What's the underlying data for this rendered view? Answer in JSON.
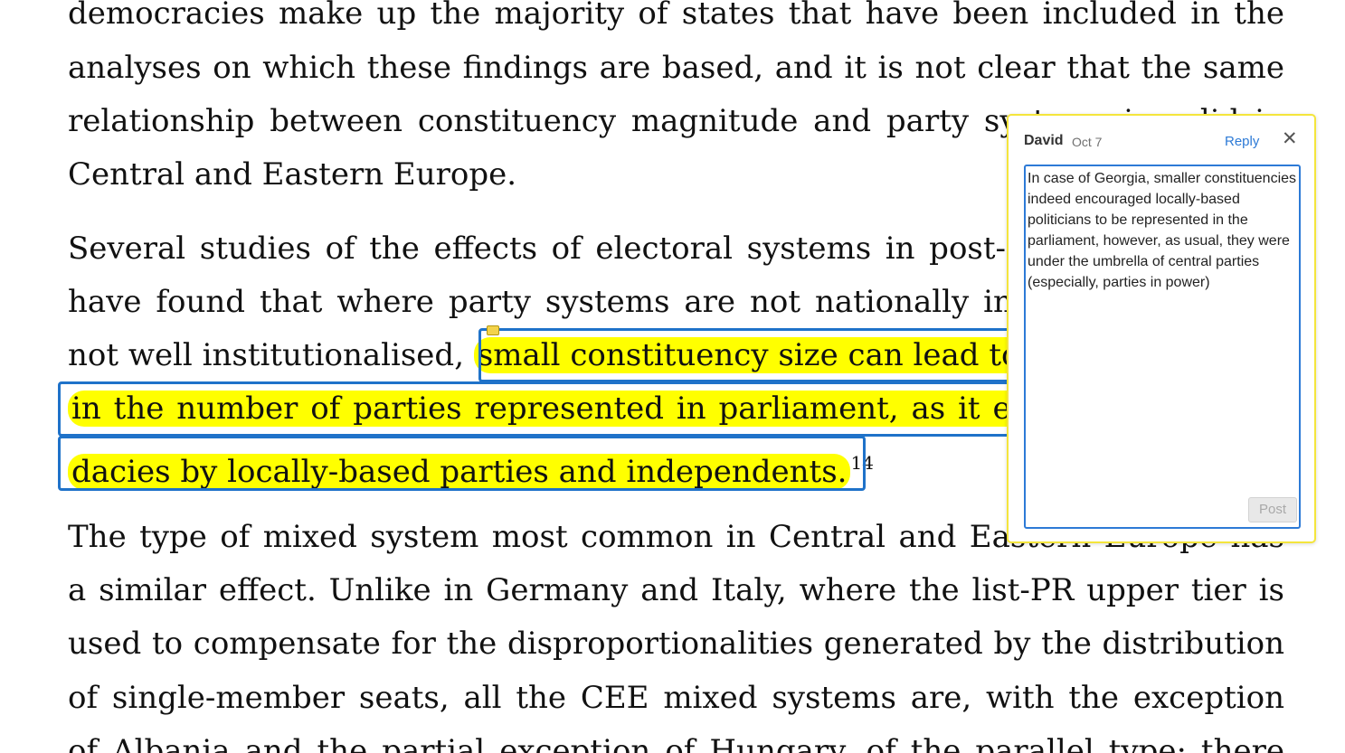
{
  "document": {
    "lines": [
      "democracies make up the majority of states that have been included in the",
      "analyses on which these findings are based, and it is not clear that the same",
      "relationship between constituency magnitude and party systems is valid in",
      "Central and Eastern Europe.",
      "Several studies of the effects of electoral systems in post-communist states",
      "have found that where party systems are not nationally integrated and are",
      "not well institutionalised,",
      "a similar effect. Unlike in Germany and Italy, where the list-PR upper tier is",
      "used to compensate for the disproportionalities generated by the distribution",
      "of single-member seats, all the CEE mixed systems are, with the exception",
      "of Albania and the partial exception of Hungary, of the parallel type: there"
    ],
    "highlight": [
      "small constituency size can lead to an increase",
      "in the number of parties represented in parliament, as it encourages candi-",
      "dacies by locally-based parties and independents."
    ],
    "footnote": "14",
    "para3_line1": "The type of mixed system most common in Central and Eastern Europe has"
  },
  "comment": {
    "author": "David",
    "date": "Oct 7",
    "reply_label": "Reply",
    "close_symbol": "✕",
    "text": "In case of Georgia, smaller constituencies indeed encouraged locally-based politicians to be represented in the parliament, however, as usual, they were under the umbrella of central parties (especially, parties in power)",
    "post_label": "Post"
  },
  "colors": {
    "highlight": "#ffff00",
    "selection": "#1f72c9",
    "comment_border": "#f4e53c",
    "link": "#2d7ad6"
  }
}
